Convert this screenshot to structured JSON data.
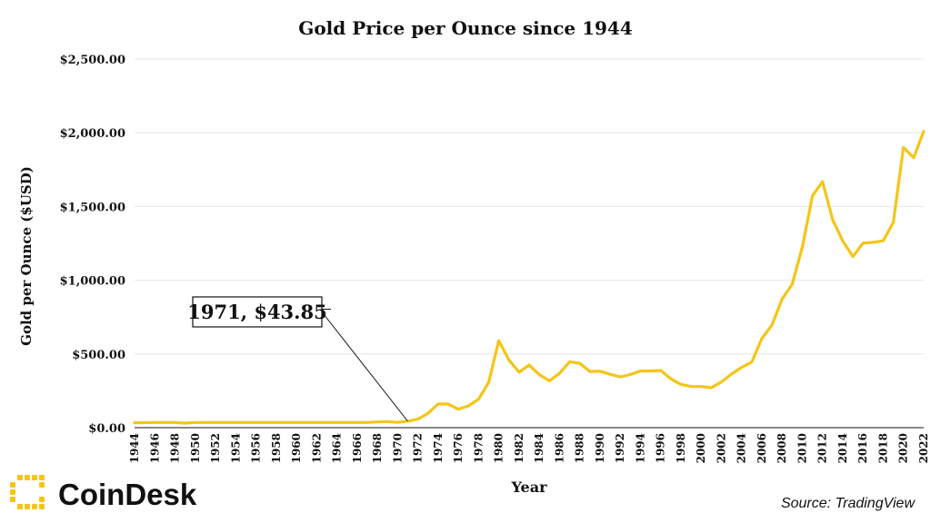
{
  "chart_data": {
    "type": "line",
    "title": "Gold Price per Ounce since 1944",
    "xlabel": "Year",
    "ylabel": "Gold per Ounce ($USD)",
    "ylim": [
      0,
      2500
    ],
    "yticks": [
      "$0.00",
      "$500.00",
      "$1,000.00",
      "$1,500.00",
      "$2,000.00",
      "$2,500.00"
    ],
    "xticks": [
      "1944",
      "1946",
      "1948",
      "1950",
      "1952",
      "1954",
      "1956",
      "1958",
      "1960",
      "1962",
      "1964",
      "1966",
      "1968",
      "1970",
      "1972",
      "1974",
      "1976",
      "1978",
      "1980",
      "1982",
      "1984",
      "1986",
      "1988",
      "1990",
      "1992",
      "1994",
      "1996",
      "1998",
      "2000",
      "2002",
      "2004",
      "2006",
      "2008",
      "2010",
      "2012",
      "2014",
      "2016",
      "2018",
      "2020",
      "2022"
    ],
    "grid": "horizontal",
    "line_color": "#f5c518",
    "x": [
      1944,
      1945,
      1946,
      1947,
      1948,
      1949,
      1950,
      1951,
      1952,
      1953,
      1954,
      1955,
      1956,
      1957,
      1958,
      1959,
      1960,
      1961,
      1962,
      1963,
      1964,
      1965,
      1966,
      1967,
      1968,
      1969,
      1970,
      1971,
      1972,
      1973,
      1974,
      1975,
      1976,
      1977,
      1978,
      1979,
      1980,
      1981,
      1982,
      1983,
      1984,
      1985,
      1986,
      1987,
      1988,
      1989,
      1990,
      1991,
      1992,
      1993,
      1994,
      1995,
      1996,
      1997,
      1998,
      1999,
      2000,
      2001,
      2002,
      2003,
      2004,
      2005,
      2006,
      2007,
      2008,
      2009,
      2010,
      2011,
      2012,
      2013,
      2014,
      2015,
      2016,
      2017,
      2018,
      2019,
      2020,
      2021,
      2022
    ],
    "values": [
      33,
      34,
      35,
      35,
      35,
      31,
      35,
      35,
      35,
      35,
      35,
      35,
      35,
      35,
      35,
      35,
      35,
      35,
      35,
      35,
      35,
      35,
      35,
      35,
      39,
      41,
      36,
      43.85,
      58,
      97,
      160,
      161,
      125,
      148,
      193,
      307,
      590,
      460,
      376,
      424,
      360,
      317,
      368,
      447,
      437,
      381,
      383,
      362,
      344,
      360,
      384,
      384,
      388,
      331,
      294,
      279,
      279,
      271,
      310,
      363,
      409,
      444,
      604,
      696,
      872,
      972,
      1225,
      1572,
      1669,
      1411,
      1266,
      1160,
      1251,
      1257,
      1268,
      1393,
      1900,
      1830,
      2010
    ],
    "values_note_removed": null,
    "annotation": {
      "text": "1971, $43.85",
      "x": 1971,
      "y": 43.85
    }
  },
  "brand": {
    "logo_text": "CoinDesk",
    "logo_color": "#f5c518"
  },
  "source": "Source: TradingView"
}
